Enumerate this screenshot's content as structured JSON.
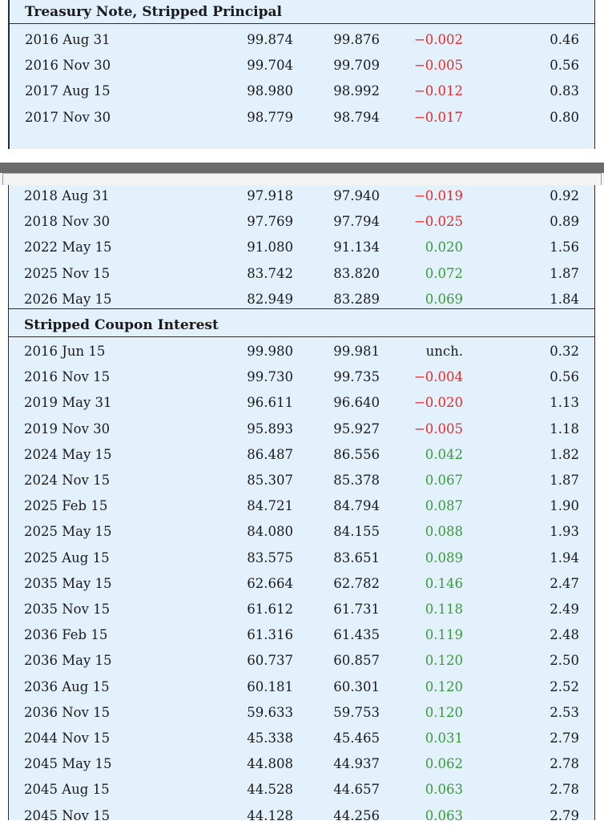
{
  "sections": {
    "principal_title": "Treasury Note, Stripped Principal",
    "coupon_title": "Stripped Coupon Interest"
  },
  "colors": {
    "negative": "#e52b2b",
    "positive": "#3a9a3a",
    "panel_bg": "#e2f1fb"
  },
  "panel1_rows": [
    {
      "date": "2016 Aug 31",
      "bid": "99.874",
      "ask": "99.876",
      "chg": "−0.002",
      "yld": "0.46",
      "dir": "neg"
    },
    {
      "date": "2016 Nov 30",
      "bid": "99.704",
      "ask": "99.709",
      "chg": "−0.005",
      "yld": "0.56",
      "dir": "neg"
    },
    {
      "date": "2017 Aug 15",
      "bid": "98.980",
      "ask": "98.992",
      "chg": "−0.012",
      "yld": "0.83",
      "dir": "neg"
    },
    {
      "date": "2017 Nov 30",
      "bid": "98.779",
      "ask": "98.794",
      "chg": "−0.017",
      "yld": "0.80",
      "dir": "neg"
    }
  ],
  "panel2_principal_rows": [
    {
      "date": "2018 Aug 31",
      "bid": "97.918",
      "ask": "97.940",
      "chg": "−0.019",
      "yld": "0.92",
      "dir": "neg"
    },
    {
      "date": "2018 Nov 30",
      "bid": "97.769",
      "ask": "97.794",
      "chg": "−0.025",
      "yld": "0.89",
      "dir": "neg"
    },
    {
      "date": "2022 May 15",
      "bid": "91.080",
      "ask": "91.134",
      "chg": "0.020",
      "yld": "1.56",
      "dir": "pos"
    },
    {
      "date": "2025 Nov 15",
      "bid": "83.742",
      "ask": "83.820",
      "chg": "0.072",
      "yld": "1.87",
      "dir": "pos"
    },
    {
      "date": "2026 May 15",
      "bid": "82.949",
      "ask": "83.289",
      "chg": "0.069",
      "yld": "1.84",
      "dir": "pos"
    }
  ],
  "coupon_rows": [
    {
      "date": "2016 Jun 15",
      "bid": "99.980",
      "ask": "99.981",
      "chg": "unch.",
      "yld": "0.32",
      "dir": "unch"
    },
    {
      "date": "2016 Nov 15",
      "bid": "99.730",
      "ask": "99.735",
      "chg": "−0.004",
      "yld": "0.56",
      "dir": "neg"
    },
    {
      "date": "2019 May 31",
      "bid": "96.611",
      "ask": "96.640",
      "chg": "−0.020",
      "yld": "1.13",
      "dir": "neg"
    },
    {
      "date": "2019 Nov 30",
      "bid": "95.893",
      "ask": "95.927",
      "chg": "−0.005",
      "yld": "1.18",
      "dir": "neg"
    },
    {
      "date": "2024 May 15",
      "bid": "86.487",
      "ask": "86.556",
      "chg": "0.042",
      "yld": "1.82",
      "dir": "pos"
    },
    {
      "date": "2024 Nov 15",
      "bid": "85.307",
      "ask": "85.378",
      "chg": "0.067",
      "yld": "1.87",
      "dir": "pos"
    },
    {
      "date": "2025 Feb 15",
      "bid": "84.721",
      "ask": "84.794",
      "chg": "0.087",
      "yld": "1.90",
      "dir": "pos"
    },
    {
      "date": "2025 May 15",
      "bid": "84.080",
      "ask": "84.155",
      "chg": "0.088",
      "yld": "1.93",
      "dir": "pos"
    },
    {
      "date": "2025 Aug 15",
      "bid": "83.575",
      "ask": "83.651",
      "chg": "0.089",
      "yld": "1.94",
      "dir": "pos"
    },
    {
      "date": "2035 May 15",
      "bid": "62.664",
      "ask": "62.782",
      "chg": "0.146",
      "yld": "2.47",
      "dir": "pos"
    },
    {
      "date": "2035 Nov 15",
      "bid": "61.612",
      "ask": "61.731",
      "chg": "0.118",
      "yld": "2.49",
      "dir": "pos"
    },
    {
      "date": "2036 Feb 15",
      "bid": "61.316",
      "ask": "61.435",
      "chg": "0.119",
      "yld": "2.48",
      "dir": "pos"
    },
    {
      "date": "2036 May 15",
      "bid": "60.737",
      "ask": "60.857",
      "chg": "0.120",
      "yld": "2.50",
      "dir": "pos"
    },
    {
      "date": "2036 Aug 15",
      "bid": "60.181",
      "ask": "60.301",
      "chg": "0.120",
      "yld": "2.52",
      "dir": "pos"
    },
    {
      "date": "2036 Nov 15",
      "bid": "59.633",
      "ask": "59.753",
      "chg": "0.120",
      "yld": "2.53",
      "dir": "pos"
    },
    {
      "date": "2044 Nov 15",
      "bid": "45.338",
      "ask": "45.465",
      "chg": "0.031",
      "yld": "2.79",
      "dir": "pos"
    },
    {
      "date": "2045 May 15",
      "bid": "44.808",
      "ask": "44.937",
      "chg": "0.062",
      "yld": "2.78",
      "dir": "pos"
    },
    {
      "date": "2045 Aug 15",
      "bid": "44.528",
      "ask": "44.657",
      "chg": "0.063",
      "yld": "2.78",
      "dir": "pos"
    },
    {
      "date": "2045 Nov 15",
      "bid": "44.128",
      "ask": "44.256",
      "chg": "0.063",
      "yld": "2.79",
      "dir": "pos"
    }
  ]
}
